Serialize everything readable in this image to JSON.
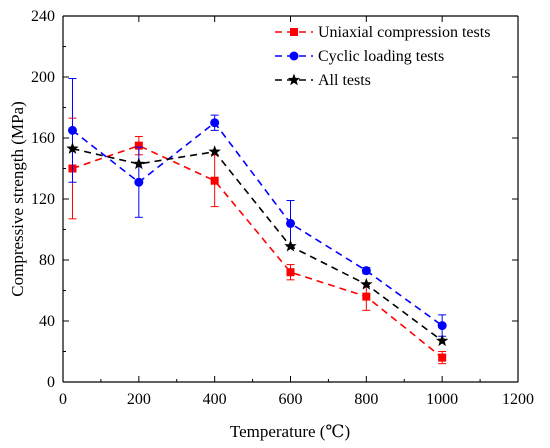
{
  "chart_data": {
    "type": "line",
    "xlabel": "Temperature (℃)",
    "ylabel": "Compressive strength (MPa)",
    "xlim": [
      0,
      1200
    ],
    "ylim": [
      0,
      240
    ],
    "xticks": [
      0,
      200,
      400,
      600,
      800,
      1000,
      1200
    ],
    "yticks": [
      0,
      40,
      80,
      120,
      160,
      200,
      240
    ],
    "grid": false,
    "legend_position": "top-right",
    "x": [
      25,
      200,
      400,
      600,
      800,
      1000
    ],
    "series": [
      {
        "name": "Uniaxial compression tests",
        "color": "#ff0000",
        "marker": "square",
        "values": [
          140,
          155,
          132,
          72,
          56,
          16
        ],
        "error": [
          33,
          6,
          17,
          5,
          9,
          4
        ]
      },
      {
        "name": "Cyclic loading tests",
        "color": "#0000ff",
        "marker": "circle",
        "values": [
          165,
          131,
          170,
          104,
          73,
          37
        ],
        "error": [
          34,
          23,
          5,
          15,
          2,
          7
        ]
      },
      {
        "name": "All tests",
        "color": "#000000",
        "marker": "star",
        "values": [
          153,
          143,
          151,
          89,
          64,
          27
        ],
        "error": null
      }
    ]
  }
}
